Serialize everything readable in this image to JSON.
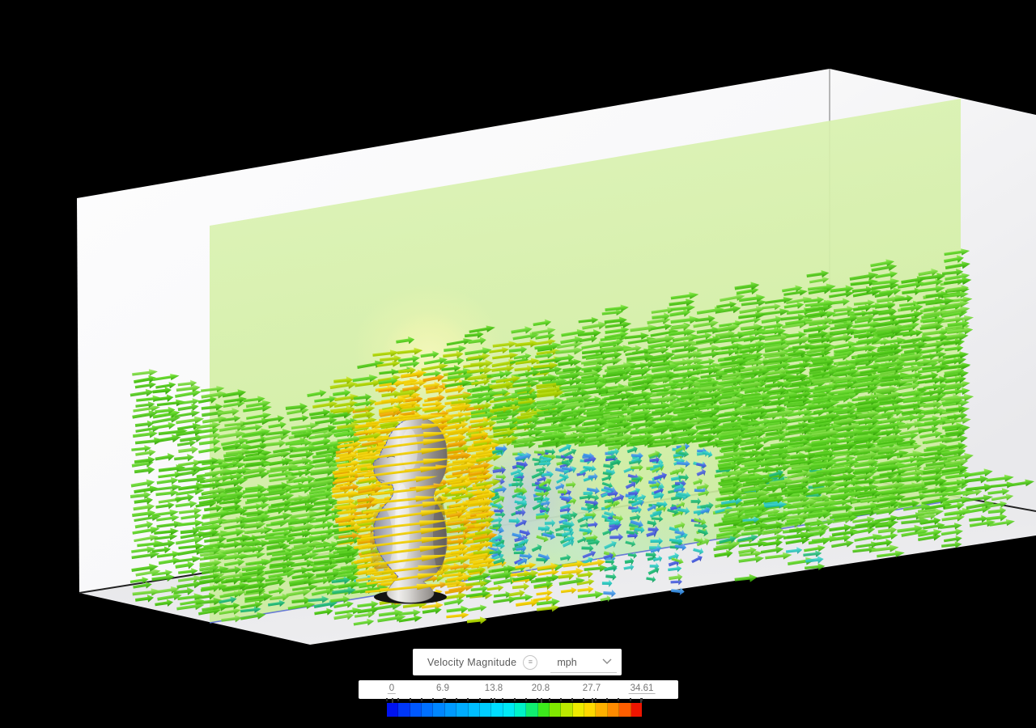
{
  "controls": {
    "field_label": "Velocity Magnitude",
    "field_menu_icon": "menu-circle-icon",
    "field_menu_glyph": "≡",
    "unit_value": "mph",
    "unit_dropdown_icon": "chevron-down-icon"
  },
  "legend": {
    "labels": [
      "0",
      "6.9",
      "13.8",
      "20.8",
      "27.7",
      "34.61"
    ],
    "min": 0,
    "max": 34.61,
    "unit": "mph",
    "editable_ends": [
      true,
      false,
      false,
      false,
      false,
      true
    ],
    "segment_colors": [
      "#0013ef",
      "#0037f7",
      "#0058fd",
      "#0070ff",
      "#0086ff",
      "#009aff",
      "#00adff",
      "#00beff",
      "#00cdff",
      "#00dcff",
      "#00e9f5",
      "#00f3c8",
      "#10ee70",
      "#3dea1c",
      "#80e800",
      "#bce900",
      "#eeeb00",
      "#ffd900",
      "#ffb100",
      "#ff8b00",
      "#ff5e00",
      "#ee1500"
    ]
  },
  "scene": {
    "background": "#000000",
    "box": {
      "wall_color": "#f9f9fa",
      "right_wall_color": "#f2f2f4",
      "floor_color": "#e8e8eb",
      "junction_edge_color": "#222222",
      "corner_edge_color": "#8a8a8a"
    },
    "slice_plane": {
      "fill": "#d5efa8",
      "fill_top": "#dcf3b6",
      "hotspot_color": "#f3f7ba",
      "wake_tint": "#b8c6ee",
      "floor_tint": "#bfe8df",
      "bottom_edge_color": "#5b6ed6"
    },
    "model": {
      "name": "chess-piece-bust",
      "material_color": "#b9b6b3",
      "base_color": "#121212",
      "intersection_outline": "#3d52e8"
    },
    "vectors": {
      "families": {
        "g1": [
          "#8ae84a",
          "#4ec718",
          "#2f9907"
        ],
        "g2": [
          "#9ff060",
          "#5ed426",
          "#37a50c"
        ],
        "g3": [
          "#b4ee7e",
          "#74d938",
          "#45a812"
        ],
        "yg": [
          "#d6ee55",
          "#aed400",
          "#7fa800"
        ],
        "yel": [
          "#ffe94d",
          "#f2cf00",
          "#bd9d00"
        ],
        "org": [
          "#ffd24d",
          "#f0a800",
          "#b87e00"
        ],
        "cyn": [
          "#6fe8e0",
          "#2cc9c0",
          "#189a96"
        ],
        "tea": [
          "#5fe0a8",
          "#22bb77",
          "#129058"
        ],
        "sky": [
          "#7cc0f2",
          "#3e95e8",
          "#2468b8"
        ],
        "blu": [
          "#7b8cf0",
          "#4a5fe0",
          "#2f3fae"
        ]
      }
    }
  }
}
